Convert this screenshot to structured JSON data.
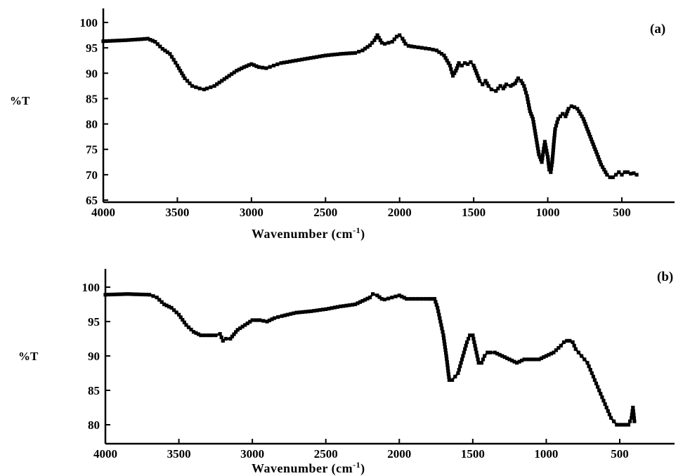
{
  "figure": {
    "panels": [
      {
        "panel_label": "(a)",
        "ylabel": "%T",
        "xlabel": "Wavenumber (cm",
        "xlabel_sup": "-1",
        "xlabel_close": ")"
      },
      {
        "panel_label": "(b)",
        "ylabel": "%T",
        "xlabel": "Wavenumber (cm",
        "xlabel_sup": "-1",
        "xlabel_close": ")"
      }
    ]
  },
  "chart_data": [
    {
      "type": "line",
      "title": "",
      "panel_label": "(a)",
      "xlabel": "Wavenumber (cm-1)",
      "ylabel": "%T",
      "xlim": [
        4000,
        400
      ],
      "x_reversed": true,
      "ylim": [
        65,
        100
      ],
      "xticks": [
        4000,
        3500,
        3000,
        2500,
        2000,
        1500,
        1000,
        500
      ],
      "yticks": [
        65,
        70,
        75,
        80,
        85,
        90,
        95,
        100
      ],
      "grid": false,
      "legend": false,
      "series": [
        {
          "x": [
            4000,
            3850,
            3700,
            3650,
            3600,
            3550,
            3500,
            3450,
            3400,
            3350,
            3320,
            3300,
            3250,
            3200,
            3150,
            3100,
            3050,
            3000,
            2950,
            2900,
            2850,
            2800,
            2700,
            2600,
            2500,
            2400,
            2300,
            2250,
            2200,
            2170,
            2150,
            2120,
            2100,
            2050,
            2020,
            2000,
            1980,
            1960,
            1940,
            1900,
            1850,
            1800,
            1750,
            1700,
            1660,
            1640,
            1620,
            1600,
            1580,
            1560,
            1540,
            1520,
            1500,
            1480,
            1460,
            1440,
            1420,
            1400,
            1380,
            1350,
            1320,
            1300,
            1280,
            1250,
            1220,
            1200,
            1180,
            1160,
            1140,
            1120,
            1100,
            1080,
            1060,
            1040,
            1020,
            1000,
            990,
            980,
            970,
            960,
            950,
            930,
            900,
            880,
            860,
            840,
            820,
            800,
            780,
            760,
            740,
            720,
            700,
            680,
            660,
            640,
            620,
            600,
            580,
            560,
            540,
            520,
            500,
            480,
            460,
            440,
            420,
            400
          ],
          "y": [
            96.3,
            96.5,
            96.8,
            96.2,
            94.8,
            93.8,
            91.5,
            89,
            87.5,
            87,
            86.8,
            87,
            87.5,
            88.5,
            89.5,
            90.5,
            91.2,
            91.8,
            91.2,
            91,
            91.5,
            92,
            92.5,
            93,
            93.5,
            93.8,
            94,
            94.5,
            95.5,
            96.5,
            97.5,
            96,
            95.8,
            96.2,
            97.2,
            97.5,
            96.8,
            95.8,
            95.4,
            95.2,
            95,
            94.8,
            94.5,
            93.5,
            91.5,
            89.5,
            90.5,
            92,
            91.5,
            92,
            91.8,
            92.2,
            91.5,
            90,
            88.5,
            87.8,
            88.5,
            87.5,
            86.8,
            86.5,
            87.5,
            87,
            87.8,
            87.5,
            88,
            89,
            88.5,
            87.5,
            85.5,
            82.5,
            81,
            77.5,
            74,
            72.5,
            76.5,
            73.5,
            71,
            70.5,
            72.5,
            76,
            79,
            81,
            82,
            81.5,
            83,
            83.5,
            83.3,
            83,
            82,
            81,
            79.5,
            78,
            76.5,
            75,
            73.5,
            72,
            71,
            70,
            69.5,
            69.5,
            70,
            70.5,
            70,
            70.5,
            70.5,
            70.2,
            70.3,
            70
          ],
          "markers": "filled squares"
        }
      ]
    },
    {
      "type": "line",
      "title": "",
      "panel_label": "(b)",
      "xlabel": "Wavenumber (cm-1)",
      "ylabel": "%T",
      "xlim": [
        4000,
        400
      ],
      "x_reversed": true,
      "ylim": [
        78,
        102
      ],
      "xticks": [
        4000,
        3500,
        3000,
        2500,
        2000,
        1500,
        1000,
        500
      ],
      "yticks": [
        80,
        85,
        90,
        95,
        100
      ],
      "grid": false,
      "legend": false,
      "series": [
        {
          "x": [
            4000,
            3850,
            3700,
            3650,
            3600,
            3550,
            3500,
            3450,
            3400,
            3350,
            3300,
            3250,
            3220,
            3200,
            3180,
            3150,
            3100,
            3050,
            3000,
            2950,
            2900,
            2850,
            2800,
            2700,
            2600,
            2500,
            2400,
            2300,
            2250,
            2200,
            2180,
            2150,
            2120,
            2100,
            2050,
            2000,
            1950,
            1900,
            1850,
            1800,
            1760,
            1740,
            1720,
            1700,
            1680,
            1660,
            1640,
            1620,
            1600,
            1580,
            1560,
            1540,
            1520,
            1500,
            1480,
            1460,
            1440,
            1420,
            1400,
            1380,
            1350,
            1300,
            1250,
            1200,
            1150,
            1100,
            1050,
            1000,
            950,
            900,
            880,
            860,
            840,
            820,
            800,
            780,
            760,
            740,
            720,
            700,
            680,
            660,
            640,
            620,
            600,
            580,
            560,
            540,
            520,
            500,
            480,
            460,
            440,
            420,
            410,
            400
          ],
          "y": [
            98.9,
            99,
            98.9,
            98.5,
            97.5,
            97,
            96,
            94.5,
            93.5,
            93,
            93,
            93,
            93.2,
            92.2,
            92.5,
            92.5,
            93.8,
            94.5,
            95.2,
            95.2,
            95,
            95.5,
            95.8,
            96.3,
            96.5,
            96.8,
            97.2,
            97.5,
            98,
            98.5,
            99,
            98.8,
            98.3,
            98.2,
            98.5,
            98.8,
            98.3,
            98.3,
            98.3,
            98.3,
            98.3,
            97,
            95,
            93,
            90,
            86.5,
            86.5,
            87,
            87.5,
            89,
            90.5,
            92,
            93,
            93,
            91,
            89,
            89,
            90,
            90.5,
            90.5,
            90.5,
            90,
            89.5,
            89,
            89.5,
            89.5,
            89.5,
            90,
            90.5,
            91.5,
            92,
            92.2,
            92.2,
            92,
            91,
            90.5,
            90,
            89.5,
            89,
            88,
            87,
            86,
            85,
            84,
            83,
            82,
            81,
            80.5,
            80,
            80,
            80,
            80,
            80,
            81,
            82.5,
            80.5
          ],
          "markers": "filled squares"
        }
      ]
    }
  ]
}
